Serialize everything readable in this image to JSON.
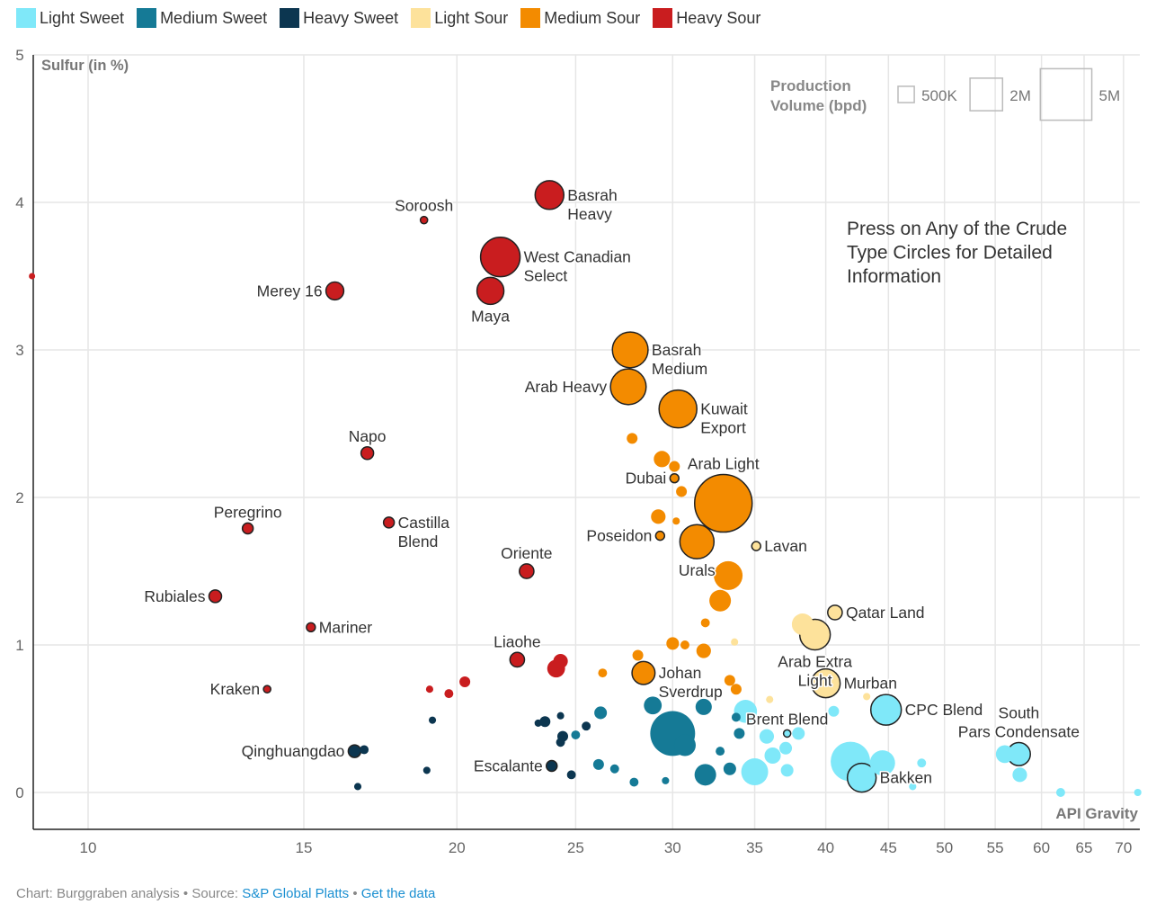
{
  "chart_data": {
    "type": "scatter",
    "title": "",
    "xlabel": "API Gravity",
    "ylabel": "Sulfur (in %)",
    "x_scale": "log",
    "xlim": [
      9,
      73
    ],
    "ylim": [
      0,
      5
    ],
    "x_ticks": [
      10,
      15,
      20,
      25,
      30,
      35,
      40,
      45,
      50,
      55,
      60,
      65,
      70
    ],
    "y_ticks": [
      0,
      1,
      2,
      3,
      4,
      5
    ],
    "grid": true,
    "legend": {
      "placement": "top",
      "entries": [
        {
          "name": "Light Sweet",
          "color": "#7fe8f9"
        },
        {
          "name": "Medium Sweet",
          "color": "#157a96"
        },
        {
          "name": "Heavy Sweet",
          "color": "#0c3650"
        },
        {
          "name": "Light Sour",
          "color": "#fde29b"
        },
        {
          "name": "Medium Sour",
          "color": "#f38b00"
        },
        {
          "name": "Heavy Sour",
          "color": "#c91d1f"
        }
      ]
    },
    "size_legend": {
      "title_lines": [
        "Production",
        "Volume (bpd)"
      ],
      "entries": [
        {
          "label": "500K",
          "volume_mbpd": 0.5
        },
        {
          "label": "2M",
          "volume_mbpd": 2
        },
        {
          "label": "5M",
          "volume_mbpd": 5
        }
      ]
    },
    "annotation_lines": [
      "Press on Any of the Crude",
      "Type Circles for Detailed",
      "Information"
    ],
    "points": [
      {
        "name": "Basrah Heavy",
        "label": [
          "Basrah",
          "Heavy"
        ],
        "pos": "right",
        "api": 23.8,
        "sulfur": 4.05,
        "volume": 1.56,
        "cat": "Heavy Sour"
      },
      {
        "name": "Soroosh",
        "label": [
          "Soroosh"
        ],
        "pos": "top",
        "api": 18.8,
        "sulfur": 3.88,
        "volume": 0.1,
        "cat": "Heavy Sour"
      },
      {
        "name": "West Canadian Select",
        "label": [
          "West Canadian",
          "Select"
        ],
        "pos": "right",
        "api": 21.7,
        "sulfur": 3.63,
        "volume": 2.95,
        "cat": "Heavy Sour"
      },
      {
        "name": "Maya",
        "label": [
          "Maya"
        ],
        "pos": "bottom",
        "api": 21.3,
        "sulfur": 3.4,
        "volume": 1.37,
        "cat": "Heavy Sour"
      },
      {
        "name": "Merey 16",
        "label": [
          "Merey 16"
        ],
        "pos": "left",
        "api": 15.9,
        "sulfur": 3.4,
        "volume": 0.6,
        "cat": "Heavy Sour"
      },
      {
        "name": "Basrah Medium",
        "label": [
          "Basrah",
          "Medium"
        ],
        "pos": "right",
        "api": 27.7,
        "sulfur": 3.0,
        "volume": 2.4,
        "cat": "Medium Sour"
      },
      {
        "name": "Arab Heavy",
        "label": [
          "Arab Heavy"
        ],
        "pos": "left",
        "api": 27.6,
        "sulfur": 2.75,
        "volume": 2.4,
        "cat": "Medium Sour"
      },
      {
        "name": "Kuwait Export",
        "label": [
          "Kuwait",
          "Export"
        ],
        "pos": "right",
        "api": 30.3,
        "sulfur": 2.6,
        "volume": 2.7,
        "cat": "Medium Sour"
      },
      {
        "name": "Arab Light",
        "label": [
          "Arab Light"
        ],
        "pos": "top",
        "api": 33.0,
        "sulfur": 1.96,
        "volume": 6.25,
        "cat": "Medium Sour"
      },
      {
        "name": "Dubai",
        "label": [
          "Dubai"
        ],
        "pos": "left",
        "api": 30.1,
        "sulfur": 2.13,
        "volume": 0.15,
        "cat": "Medium Sour"
      },
      {
        "name": "Napo",
        "label": [
          "Napo"
        ],
        "pos": "top",
        "api": 16.9,
        "sulfur": 2.3,
        "volume": 0.3,
        "cat": "Heavy Sour"
      },
      {
        "name": "Peregrino",
        "label": [
          "Peregrino"
        ],
        "pos": "top",
        "api": 13.5,
        "sulfur": 1.79,
        "volume": 0.22,
        "cat": "Heavy Sour"
      },
      {
        "name": "Castilla Blend",
        "label": [
          "Castilla",
          "Blend"
        ],
        "pos": "right",
        "api": 17.6,
        "sulfur": 1.83,
        "volume": 0.22,
        "cat": "Heavy Sour"
      },
      {
        "name": "Oriente",
        "label": [
          "Oriente"
        ],
        "pos": "top",
        "api": 22.8,
        "sulfur": 1.5,
        "volume": 0.4,
        "cat": "Heavy Sour"
      },
      {
        "name": "Poseidon",
        "label": [
          "Poseidon"
        ],
        "pos": "left",
        "api": 29.3,
        "sulfur": 1.74,
        "volume": 0.15,
        "cat": "Medium Sour"
      },
      {
        "name": "Lavan",
        "label": [
          "Lavan"
        ],
        "pos": "right",
        "api": 35.1,
        "sulfur": 1.67,
        "volume": 0.15,
        "cat": "Light Sour"
      },
      {
        "name": "Urals",
        "label": [
          "Urals"
        ],
        "pos": "bottom",
        "api": 31.4,
        "sulfur": 1.7,
        "volume": 2.2,
        "cat": "Medium Sour"
      },
      {
        "name": "Rubiales",
        "label": [
          "Rubiales"
        ],
        "pos": "left",
        "api": 12.7,
        "sulfur": 1.33,
        "volume": 0.3,
        "cat": "Heavy Sour"
      },
      {
        "name": "Mariner",
        "label": [
          "Mariner"
        ],
        "pos": "right",
        "api": 15.2,
        "sulfur": 1.12,
        "volume": 0.15,
        "cat": "Heavy Sour"
      },
      {
        "name": "Qatar Land",
        "label": [
          "Qatar Land"
        ],
        "pos": "right",
        "api": 40.7,
        "sulfur": 1.22,
        "volume": 0.4,
        "cat": "Light Sour"
      },
      {
        "name": "Liaohe",
        "label": [
          "Liaohe"
        ],
        "pos": "top",
        "api": 22.4,
        "sulfur": 0.9,
        "volume": 0.4,
        "cat": "Heavy Sour"
      },
      {
        "name": "Kraken",
        "label": [
          "Kraken"
        ],
        "pos": "left",
        "api": 14.0,
        "sulfur": 0.7,
        "volume": 0.1,
        "cat": "Heavy Sour"
      },
      {
        "name": "Johan Sverdrup",
        "label": [
          "Johan",
          "Sverdrup"
        ],
        "pos": "right",
        "api": 28.4,
        "sulfur": 0.81,
        "volume": 1.0,
        "cat": "Medium Sour"
      },
      {
        "name": "Arab Extra Light",
        "label": [
          "Arab Extra",
          "Light"
        ],
        "pos": "bottom",
        "api": 39.2,
        "sulfur": 1.07,
        "volume": 1.76,
        "cat": "Light Sour"
      },
      {
        "name": "Murban",
        "label": [
          "Murban"
        ],
        "pos": "right",
        "api": 40.0,
        "sulfur": 0.74,
        "volume": 1.56,
        "cat": "Light Sour"
      },
      {
        "name": "Brent Blend",
        "label": [
          "Brent Blend"
        ],
        "pos": "top",
        "api": 37.2,
        "sulfur": 0.4,
        "volume": 0.1,
        "cat": "Light Sweet"
      },
      {
        "name": "CPC Blend",
        "label": [
          "CPC Blend"
        ],
        "pos": "right",
        "api": 44.8,
        "sulfur": 0.56,
        "volume": 1.76,
        "cat": "Light Sweet"
      },
      {
        "name": "South Pars Condensate",
        "label": [
          "South",
          "Pars Condensate"
        ],
        "pos": "top",
        "api": 57.5,
        "sulfur": 0.26,
        "volume": 1.0,
        "cat": "Light Sweet"
      },
      {
        "name": "Bakken",
        "label": [
          "Bakken"
        ],
        "pos": "right",
        "api": 42.8,
        "sulfur": 0.1,
        "volume": 1.56,
        "cat": "Light Sweet"
      },
      {
        "name": "Qinghuangdao",
        "label": [
          "Qinghuangdao"
        ],
        "pos": "left",
        "api": 16.5,
        "sulfur": 0.28,
        "volume": 0.3,
        "cat": "Heavy Sweet"
      },
      {
        "name": "Escalante",
        "label": [
          "Escalante"
        ],
        "pos": "left",
        "api": 23.9,
        "sulfur": 0.18,
        "volume": 0.22,
        "cat": "Heavy Sweet"
      },
      {
        "api": 9.0,
        "sulfur": 3.5,
        "volume": 0.05,
        "cat": "Heavy Sour"
      },
      {
        "api": 24.3,
        "sulfur": 0.89,
        "volume": 0.4,
        "cat": "Heavy Sour"
      },
      {
        "api": 24.1,
        "sulfur": 0.84,
        "volume": 0.6,
        "cat": "Heavy Sour"
      },
      {
        "api": 20.3,
        "sulfur": 0.75,
        "volume": 0.22,
        "cat": "Heavy Sour"
      },
      {
        "api": 19.7,
        "sulfur": 0.67,
        "volume": 0.15,
        "cat": "Heavy Sour"
      },
      {
        "api": 19.0,
        "sulfur": 0.7,
        "volume": 0.1,
        "cat": "Heavy Sour"
      },
      {
        "api": 27.8,
        "sulfur": 2.4,
        "volume": 0.22,
        "cat": "Medium Sour"
      },
      {
        "api": 29.4,
        "sulfur": 2.26,
        "volume": 0.5,
        "cat": "Medium Sour"
      },
      {
        "api": 30.1,
        "sulfur": 2.21,
        "volume": 0.22,
        "cat": "Medium Sour"
      },
      {
        "api": 30.5,
        "sulfur": 2.04,
        "volume": 0.22,
        "cat": "Medium Sour"
      },
      {
        "api": 29.2,
        "sulfur": 1.87,
        "volume": 0.4,
        "cat": "Medium Sour"
      },
      {
        "api": 30.2,
        "sulfur": 1.84,
        "volume": 0.1,
        "cat": "Medium Sour"
      },
      {
        "api": 33.3,
        "sulfur": 1.47,
        "volume": 1.56,
        "cat": "Medium Sour"
      },
      {
        "api": 32.8,
        "sulfur": 1.3,
        "volume": 0.88,
        "cat": "Medium Sour"
      },
      {
        "api": 31.9,
        "sulfur": 1.15,
        "volume": 0.15,
        "cat": "Medium Sour"
      },
      {
        "api": 30.0,
        "sulfur": 1.01,
        "volume": 0.3,
        "cat": "Medium Sour"
      },
      {
        "api": 30.7,
        "sulfur": 1.0,
        "volume": 0.15,
        "cat": "Medium Sour"
      },
      {
        "api": 31.8,
        "sulfur": 0.96,
        "volume": 0.4,
        "cat": "Medium Sour"
      },
      {
        "api": 28.1,
        "sulfur": 0.93,
        "volume": 0.22,
        "cat": "Medium Sour"
      },
      {
        "api": 26.3,
        "sulfur": 0.81,
        "volume": 0.15,
        "cat": "Medium Sour"
      },
      {
        "api": 33.4,
        "sulfur": 0.76,
        "volume": 0.22,
        "cat": "Medium Sour"
      },
      {
        "api": 33.8,
        "sulfur": 0.7,
        "volume": 0.22,
        "cat": "Medium Sour"
      },
      {
        "api": 38.3,
        "sulfur": 1.14,
        "volume": 0.88,
        "cat": "Light Sour"
      },
      {
        "api": 33.7,
        "sulfur": 1.02,
        "volume": 0.1,
        "cat": "Light Sour"
      },
      {
        "api": 36.0,
        "sulfur": 0.63,
        "volume": 0.1,
        "cat": "Light Sour"
      },
      {
        "api": 43.2,
        "sulfur": 0.65,
        "volume": 0.1,
        "cat": "Light Sour"
      },
      {
        "api": 30.0,
        "sulfur": 0.4,
        "volume": 3.8,
        "cat": "Medium Sweet"
      },
      {
        "api": 28.9,
        "sulfur": 0.59,
        "volume": 0.6,
        "cat": "Medium Sweet"
      },
      {
        "api": 31.8,
        "sulfur": 0.58,
        "volume": 0.5,
        "cat": "Medium Sweet"
      },
      {
        "api": 30.7,
        "sulfur": 0.32,
        "volume": 0.88,
        "cat": "Medium Sweet"
      },
      {
        "api": 31.9,
        "sulfur": 0.12,
        "volume": 0.88,
        "cat": "Medium Sweet"
      },
      {
        "api": 26.2,
        "sulfur": 0.54,
        "volume": 0.3,
        "cat": "Medium Sweet"
      },
      {
        "api": 25.0,
        "sulfur": 0.39,
        "volume": 0.15,
        "cat": "Medium Sweet"
      },
      {
        "api": 26.1,
        "sulfur": 0.19,
        "volume": 0.22,
        "cat": "Medium Sweet"
      },
      {
        "api": 26.9,
        "sulfur": 0.16,
        "volume": 0.15,
        "cat": "Medium Sweet"
      },
      {
        "api": 27.9,
        "sulfur": 0.07,
        "volume": 0.15,
        "cat": "Medium Sweet"
      },
      {
        "api": 29.6,
        "sulfur": 0.08,
        "volume": 0.1,
        "cat": "Medium Sweet"
      },
      {
        "api": 34.0,
        "sulfur": 0.4,
        "volume": 0.22,
        "cat": "Medium Sweet"
      },
      {
        "api": 32.8,
        "sulfur": 0.28,
        "volume": 0.15,
        "cat": "Medium Sweet"
      },
      {
        "api": 33.4,
        "sulfur": 0.16,
        "volume": 0.3,
        "cat": "Medium Sweet"
      },
      {
        "api": 33.8,
        "sulfur": 0.51,
        "volume": 0.15,
        "cat": "Medium Sweet"
      },
      {
        "api": 23.6,
        "sulfur": 0.48,
        "volume": 0.22,
        "cat": "Heavy Sweet"
      },
      {
        "api": 23.3,
        "sulfur": 0.47,
        "volume": 0.1,
        "cat": "Heavy Sweet"
      },
      {
        "api": 24.3,
        "sulfur": 0.52,
        "volume": 0.1,
        "cat": "Heavy Sweet"
      },
      {
        "api": 24.4,
        "sulfur": 0.38,
        "volume": 0.22,
        "cat": "Heavy Sweet"
      },
      {
        "api": 24.3,
        "sulfur": 0.34,
        "volume": 0.15,
        "cat": "Heavy Sweet"
      },
      {
        "api": 24.8,
        "sulfur": 0.12,
        "volume": 0.15,
        "cat": "Heavy Sweet"
      },
      {
        "api": 25.5,
        "sulfur": 0.45,
        "volume": 0.15,
        "cat": "Heavy Sweet"
      },
      {
        "api": 19.1,
        "sulfur": 0.49,
        "volume": 0.1,
        "cat": "Heavy Sweet"
      },
      {
        "api": 18.9,
        "sulfur": 0.15,
        "volume": 0.1,
        "cat": "Heavy Sweet"
      },
      {
        "api": 16.6,
        "sulfur": 0.04,
        "volume": 0.1,
        "cat": "Heavy Sweet"
      },
      {
        "api": 16.8,
        "sulfur": 0.29,
        "volume": 0.15,
        "cat": "Heavy Sweet"
      },
      {
        "api": 34.4,
        "sulfur": 0.55,
        "volume": 1.0,
        "cat": "Light Sweet"
      },
      {
        "api": 35.0,
        "sulfur": 0.14,
        "volume": 1.37,
        "cat": "Light Sweet"
      },
      {
        "api": 36.2,
        "sulfur": 0.25,
        "volume": 0.5,
        "cat": "Light Sweet"
      },
      {
        "api": 35.8,
        "sulfur": 0.38,
        "volume": 0.4,
        "cat": "Light Sweet"
      },
      {
        "api": 38.0,
        "sulfur": 0.4,
        "volume": 0.3,
        "cat": "Light Sweet"
      },
      {
        "api": 37.2,
        "sulfur": 0.15,
        "volume": 0.3,
        "cat": "Light Sweet"
      },
      {
        "api": 37.1,
        "sulfur": 0.3,
        "volume": 0.3,
        "cat": "Light Sweet"
      },
      {
        "api": 41.9,
        "sulfur": 0.21,
        "volume": 2.95,
        "cat": "Light Sweet"
      },
      {
        "api": 44.5,
        "sulfur": 0.2,
        "volume": 1.2,
        "cat": "Light Sweet"
      },
      {
        "api": 56.0,
        "sulfur": 0.26,
        "volume": 0.6,
        "cat": "Light Sweet"
      },
      {
        "api": 57.6,
        "sulfur": 0.12,
        "volume": 0.4,
        "cat": "Light Sweet"
      },
      {
        "api": 62.2,
        "sulfur": 0.0,
        "volume": 0.15,
        "cat": "Light Sweet"
      },
      {
        "api": 71.9,
        "sulfur": 0.0,
        "volume": 0.1,
        "cat": "Light Sweet"
      },
      {
        "api": 40.6,
        "sulfur": 0.55,
        "volume": 0.22,
        "cat": "Light Sweet"
      },
      {
        "api": 47.9,
        "sulfur": 0.2,
        "volume": 0.15,
        "cat": "Light Sweet"
      },
      {
        "api": 47.1,
        "sulfur": 0.04,
        "volume": 0.1,
        "cat": "Light Sweet"
      }
    ]
  },
  "footer": {
    "prefix": "Chart: Burggraben analysis • Source: ",
    "source_link": "S&P Global Platts",
    "separator": " • ",
    "data_link": "Get the data"
  }
}
